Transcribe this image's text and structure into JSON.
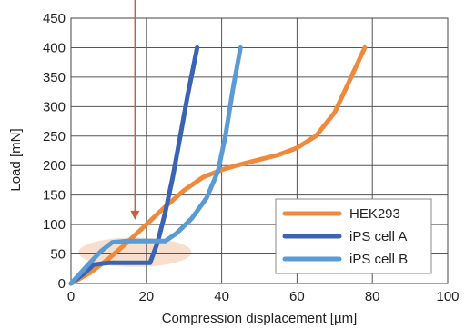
{
  "chart_data": {
    "type": "line",
    "title": "",
    "xlabel": "Compression displacement [µm]",
    "ylabel": "Load [mN]",
    "xlim": [
      0,
      100
    ],
    "ylim": [
      0,
      450
    ],
    "xticks": [
      0,
      20,
      40,
      60,
      80,
      100
    ],
    "yticks": [
      0,
      50,
      100,
      150,
      200,
      250,
      300,
      350,
      400,
      450
    ],
    "grid": true,
    "legend_position": "bottom-right",
    "series": [
      {
        "name": "HEK293",
        "color": "#ef8a3c",
        "points": [
          [
            0,
            0
          ],
          [
            5,
            18
          ],
          [
            10,
            42
          ],
          [
            15,
            70
          ],
          [
            20,
            100
          ],
          [
            25,
            130
          ],
          [
            30,
            158
          ],
          [
            35,
            180
          ],
          [
            40,
            193
          ],
          [
            45,
            202
          ],
          [
            50,
            210
          ],
          [
            55,
            218
          ],
          [
            60,
            230
          ],
          [
            65,
            250
          ],
          [
            70,
            290
          ],
          [
            74,
            345
          ],
          [
            78,
            400
          ]
        ]
      },
      {
        "name": "iPS cell A",
        "color": "#3b63b3",
        "points": [
          [
            0,
            0
          ],
          [
            4,
            20
          ],
          [
            6,
            32
          ],
          [
            10,
            35
          ],
          [
            15,
            35
          ],
          [
            21,
            35
          ],
          [
            23,
            70
          ],
          [
            25,
            120
          ],
          [
            27,
            180
          ],
          [
            29,
            250
          ],
          [
            31,
            320
          ],
          [
            33.5,
            400
          ]
        ]
      },
      {
        "name": "iPS cell B",
        "color": "#5b9bd5",
        "points": [
          [
            0,
            0
          ],
          [
            5,
            35
          ],
          [
            8,
            55
          ],
          [
            11,
            70
          ],
          [
            15,
            72
          ],
          [
            20,
            72
          ],
          [
            25,
            72
          ],
          [
            28,
            85
          ],
          [
            32,
            110
          ],
          [
            36,
            145
          ],
          [
            39,
            190
          ],
          [
            41,
            250
          ],
          [
            43,
            330
          ],
          [
            45,
            400
          ]
        ]
      }
    ],
    "annotations": [
      {
        "type": "arrow",
        "x": 17,
        "y_from": 450,
        "y_to": 108,
        "color": "#d05a3a"
      },
      {
        "type": "ellipse",
        "cx": 17,
        "cy": 53,
        "rx": 15,
        "ry": 25,
        "color": "#f7d9c4"
      }
    ]
  }
}
